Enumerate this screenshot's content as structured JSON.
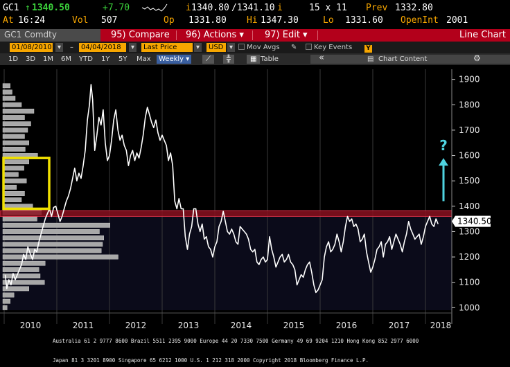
{
  "quote": {
    "ticker": "GC1",
    "arrow": "↑",
    "last": "1340.50",
    "change": "+7.70",
    "bid_ask_prefix": "i",
    "bid": "1340.80",
    "ask": "/1341.10",
    "ask_suffix": "i",
    "size": "15 x 11",
    "prev_label": "Prev",
    "prev_value": "1332.80",
    "time_label": "At",
    "time_value": "16:24",
    "vol_label": "Vol",
    "vol_value": "507",
    "open_label": "Op",
    "open_value": "1331.80",
    "high_label": "Hi",
    "high_value": "1347.30",
    "low_label": "Lo",
    "low_value": "1331.60",
    "oi_label": "OpenInt",
    "oi_value": "2001"
  },
  "menubar": {
    "security": "GC1 Comdty",
    "compare": "95) Compare",
    "actions": "96) Actions ▾",
    "edit": "97) Edit ▾",
    "chart_name": "Line Chart"
  },
  "controls": {
    "start_date": "01/08/2010",
    "end_date": "04/04/2018",
    "field": "Last Price",
    "currency": "USD",
    "mov_avgs": "Mov Avgs",
    "key_events": "Key Events",
    "y_badge": "Y"
  },
  "periods": {
    "items": [
      "1D",
      "3D",
      "1M",
      "6M",
      "YTD",
      "1Y",
      "5Y",
      "Max"
    ],
    "frequency": "Weekly ▾",
    "table": "Table",
    "collapse": "«",
    "chart_content": "Chart Content",
    "gear": "⚙"
  },
  "chart_data": {
    "type": "line",
    "title": "",
    "xlabel": "",
    "ylabel": "",
    "ylim": [
      990,
      1940
    ],
    "y_ticks": [
      1000,
      1100,
      1200,
      1300,
      1400,
      1500,
      1600,
      1700,
      1800,
      1900
    ],
    "x_labels": [
      "2010",
      "2011",
      "2012",
      "2013",
      "2014",
      "2015",
      "2016",
      "2017",
      "2018"
    ],
    "last_value_label": "1340.50",
    "resistance_band": [
      1360,
      1382
    ],
    "annotation": "?",
    "series": [
      {
        "values": [
          [
            2010.02,
            1130
          ],
          [
            2010.05,
            1075
          ],
          [
            2010.09,
            1110
          ],
          [
            2010.13,
            1090
          ],
          [
            2010.17,
            1135
          ],
          [
            2010.21,
            1110
          ],
          [
            2010.25,
            1130
          ],
          [
            2010.29,
            1150
          ],
          [
            2010.33,
            1170
          ],
          [
            2010.37,
            1210
          ],
          [
            2010.41,
            1190
          ],
          [
            2010.45,
            1240
          ],
          [
            2010.5,
            1210
          ],
          [
            2010.54,
            1190
          ],
          [
            2010.58,
            1230
          ],
          [
            2010.62,
            1220
          ],
          [
            2010.66,
            1260
          ],
          [
            2010.7,
            1290
          ],
          [
            2010.74,
            1320
          ],
          [
            2010.78,
            1350
          ],
          [
            2010.82,
            1370
          ],
          [
            2010.86,
            1390
          ],
          [
            2010.9,
            1360
          ],
          [
            2010.94,
            1395
          ],
          [
            2010.98,
            1400
          ],
          [
            2011.02,
            1370
          ],
          [
            2011.06,
            1340
          ],
          [
            2011.1,
            1360
          ],
          [
            2011.14,
            1390
          ],
          [
            2011.18,
            1420
          ],
          [
            2011.22,
            1440
          ],
          [
            2011.26,
            1470
          ],
          [
            2011.3,
            1510
          ],
          [
            2011.34,
            1550
          ],
          [
            2011.38,
            1500
          ],
          [
            2011.42,
            1530
          ],
          [
            2011.46,
            1510
          ],
          [
            2011.5,
            1560
          ],
          [
            2011.54,
            1620
          ],
          [
            2011.58,
            1740
          ],
          [
            2011.62,
            1800
          ],
          [
            2011.65,
            1880
          ],
          [
            2011.68,
            1820
          ],
          [
            2011.72,
            1620
          ],
          [
            2011.76,
            1680
          ],
          [
            2011.8,
            1750
          ],
          [
            2011.84,
            1720
          ],
          [
            2011.88,
            1780
          ],
          [
            2011.92,
            1650
          ],
          [
            2011.96,
            1580
          ],
          [
            2012.0,
            1600
          ],
          [
            2012.04,
            1660
          ],
          [
            2012.08,
            1740
          ],
          [
            2012.12,
            1780
          ],
          [
            2012.16,
            1700
          ],
          [
            2012.2,
            1660
          ],
          [
            2012.24,
            1680
          ],
          [
            2012.28,
            1640
          ],
          [
            2012.32,
            1620
          ],
          [
            2012.36,
            1560
          ],
          [
            2012.4,
            1600
          ],
          [
            2012.44,
            1620
          ],
          [
            2012.48,
            1580
          ],
          [
            2012.52,
            1610
          ],
          [
            2012.56,
            1590
          ],
          [
            2012.6,
            1630
          ],
          [
            2012.64,
            1680
          ],
          [
            2012.68,
            1750
          ],
          [
            2012.72,
            1790
          ],
          [
            2012.76,
            1760
          ],
          [
            2012.8,
            1730
          ],
          [
            2012.84,
            1710
          ],
          [
            2012.88,
            1740
          ],
          [
            2012.92,
            1690
          ],
          [
            2012.96,
            1660
          ],
          [
            2013.0,
            1680
          ],
          [
            2013.04,
            1660
          ],
          [
            2013.08,
            1640
          ],
          [
            2013.12,
            1580
          ],
          [
            2013.16,
            1610
          ],
          [
            2013.2,
            1560
          ],
          [
            2013.24,
            1420
          ],
          [
            2013.28,
            1390
          ],
          [
            2013.32,
            1430
          ],
          [
            2013.36,
            1390
          ],
          [
            2013.4,
            1390
          ],
          [
            2013.44,
            1280
          ],
          [
            2013.48,
            1230
          ],
          [
            2013.52,
            1290
          ],
          [
            2013.56,
            1320
          ],
          [
            2013.6,
            1390
          ],
          [
            2013.64,
            1390
          ],
          [
            2013.68,
            1330
          ],
          [
            2013.72,
            1300
          ],
          [
            2013.76,
            1330
          ],
          [
            2013.8,
            1270
          ],
          [
            2013.84,
            1280
          ],
          [
            2013.88,
            1240
          ],
          [
            2013.92,
            1230
          ],
          [
            2013.96,
            1200
          ],
          [
            2014.0,
            1240
          ],
          [
            2014.04,
            1260
          ],
          [
            2014.08,
            1320
          ],
          [
            2014.12,
            1340
          ],
          [
            2014.16,
            1380
          ],
          [
            2014.2,
            1340
          ],
          [
            2014.24,
            1300
          ],
          [
            2014.28,
            1290
          ],
          [
            2014.32,
            1310
          ],
          [
            2014.36,
            1290
          ],
          [
            2014.4,
            1260
          ],
          [
            2014.44,
            1250
          ],
          [
            2014.48,
            1320
          ],
          [
            2014.52,
            1310
          ],
          [
            2014.56,
            1300
          ],
          [
            2014.6,
            1290
          ],
          [
            2014.64,
            1270
          ],
          [
            2014.68,
            1230
          ],
          [
            2014.72,
            1220
          ],
          [
            2014.76,
            1230
          ],
          [
            2014.8,
            1180
          ],
          [
            2014.84,
            1170
          ],
          [
            2014.88,
            1190
          ],
          [
            2014.92,
            1200
          ],
          [
            2014.96,
            1180
          ],
          [
            2015.0,
            1190
          ],
          [
            2015.04,
            1280
          ],
          [
            2015.08,
            1230
          ],
          [
            2015.12,
            1200
          ],
          [
            2015.16,
            1160
          ],
          [
            2015.2,
            1180
          ],
          [
            2015.24,
            1200
          ],
          [
            2015.28,
            1210
          ],
          [
            2015.32,
            1180
          ],
          [
            2015.36,
            1190
          ],
          [
            2015.4,
            1210
          ],
          [
            2015.44,
            1180
          ],
          [
            2015.48,
            1170
          ],
          [
            2015.52,
            1150
          ],
          [
            2015.56,
            1090
          ],
          [
            2015.6,
            1110
          ],
          [
            2015.64,
            1130
          ],
          [
            2015.68,
            1120
          ],
          [
            2015.72,
            1150
          ],
          [
            2015.76,
            1170
          ],
          [
            2015.8,
            1180
          ],
          [
            2015.84,
            1140
          ],
          [
            2015.88,
            1090
          ],
          [
            2015.92,
            1060
          ],
          [
            2015.96,
            1070
          ],
          [
            2016.0,
            1090
          ],
          [
            2016.04,
            1110
          ],
          [
            2016.08,
            1200
          ],
          [
            2016.12,
            1240
          ],
          [
            2016.16,
            1260
          ],
          [
            2016.2,
            1220
          ],
          [
            2016.24,
            1230
          ],
          [
            2016.28,
            1250
          ],
          [
            2016.32,
            1290
          ],
          [
            2016.36,
            1260
          ],
          [
            2016.4,
            1220
          ],
          [
            2016.44,
            1260
          ],
          [
            2016.48,
            1320
          ],
          [
            2016.52,
            1360
          ],
          [
            2016.56,
            1340
          ],
          [
            2016.6,
            1350
          ],
          [
            2016.64,
            1320
          ],
          [
            2016.68,
            1330
          ],
          [
            2016.72,
            1310
          ],
          [
            2016.76,
            1260
          ],
          [
            2016.8,
            1270
          ],
          [
            2016.84,
            1290
          ],
          [
            2016.88,
            1220
          ],
          [
            2016.92,
            1180
          ],
          [
            2016.96,
            1140
          ],
          [
            2017.0,
            1160
          ],
          [
            2017.04,
            1190
          ],
          [
            2017.08,
            1230
          ],
          [
            2017.12,
            1240
          ],
          [
            2017.16,
            1260
          ],
          [
            2017.2,
            1200
          ],
          [
            2017.24,
            1250
          ],
          [
            2017.28,
            1260
          ],
          [
            2017.32,
            1280
          ],
          [
            2017.36,
            1230
          ],
          [
            2017.4,
            1260
          ],
          [
            2017.44,
            1290
          ],
          [
            2017.48,
            1270
          ],
          [
            2017.52,
            1250
          ],
          [
            2017.56,
            1220
          ],
          [
            2017.6,
            1260
          ],
          [
            2017.64,
            1290
          ],
          [
            2017.68,
            1340
          ],
          [
            2017.72,
            1310
          ],
          [
            2017.76,
            1290
          ],
          [
            2017.8,
            1270
          ],
          [
            2017.84,
            1280
          ],
          [
            2017.88,
            1290
          ],
          [
            2017.92,
            1250
          ],
          [
            2017.96,
            1280
          ],
          [
            2018.0,
            1320
          ],
          [
            2018.04,
            1340
          ],
          [
            2018.08,
            1360
          ],
          [
            2018.12,
            1330
          ],
          [
            2018.16,
            1320
          ],
          [
            2018.2,
            1350
          ],
          [
            2018.24,
            1330
          ]
        ]
      }
    ],
    "volume_at_price": [
      {
        "price": 1000,
        "length": 7
      },
      {
        "price": 1025,
        "length": 12
      },
      {
        "price": 1050,
        "length": 18
      },
      {
        "price": 1075,
        "length": 42
      },
      {
        "price": 1100,
        "length": 67
      },
      {
        "price": 1125,
        "length": 60
      },
      {
        "price": 1150,
        "length": 58
      },
      {
        "price": 1175,
        "length": 68
      },
      {
        "price": 1200,
        "length": 185
      },
      {
        "price": 1225,
        "length": 158
      },
      {
        "price": 1250,
        "length": 160
      },
      {
        "price": 1275,
        "length": 162
      },
      {
        "price": 1300,
        "length": 155
      },
      {
        "price": 1325,
        "length": 172
      },
      {
        "price": 1350,
        "length": 55
      },
      {
        "price": 1375,
        "length": 62
      },
      {
        "price": 1400,
        "length": 48
      },
      {
        "price": 1425,
        "length": 30
      },
      {
        "price": 1450,
        "length": 35
      },
      {
        "price": 1475,
        "length": 22
      },
      {
        "price": 1500,
        "length": 38
      },
      {
        "price": 1525,
        "length": 25
      },
      {
        "price": 1550,
        "length": 34
      },
      {
        "price": 1575,
        "length": 42
      },
      {
        "price": 1600,
        "length": 56
      },
      {
        "price": 1625,
        "length": 36
      },
      {
        "price": 1650,
        "length": 42
      },
      {
        "price": 1675,
        "length": 35
      },
      {
        "price": 1700,
        "length": 40
      },
      {
        "price": 1725,
        "length": 45
      },
      {
        "price": 1750,
        "length": 35
      },
      {
        "price": 1775,
        "length": 50
      },
      {
        "price": 1800,
        "length": 30
      },
      {
        "price": 1825,
        "length": 20
      },
      {
        "price": 1850,
        "length": 15
      },
      {
        "price": 1875,
        "length": 12
      }
    ]
  },
  "footer": {
    "line1": "Australia 61 2 9777 8600 Brazil 5511 2395 9000 Europe 44 20 7330 7500 Germany 49 69 9204 1210 Hong Kong 852 2977 6000",
    "line2": "Japan 81 3 3201 8900          Singapore 65 6212 1000          U.S. 1 212 318 2000          Copyright 2018 Bloomberg Finance L.P."
  },
  "colors": {
    "amber": "#f7a600",
    "menu_red": "#b3001b",
    "band": "#8a1020",
    "arrow": "#4fd3e0",
    "highlight_box": "#f0e000"
  }
}
